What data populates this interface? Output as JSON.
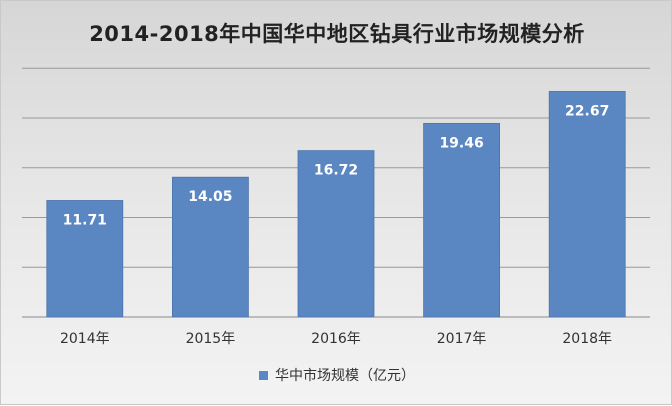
{
  "chart_data": {
    "type": "bar",
    "title": "2014-2018年中国华中地区钻具行业市场规模分析",
    "categories": [
      "2014年",
      "2015年",
      "2016年",
      "2017年",
      "2018年"
    ],
    "series": [
      {
        "name": "华中市场规模（亿元）",
        "values": [
          11.71,
          14.05,
          16.72,
          19.46,
          22.67
        ],
        "color": "#5a86c1"
      }
    ],
    "ylim": [
      0,
      25
    ],
    "grid": true,
    "legend_position": "bottom",
    "data_labels": [
      "11.71",
      "14.05",
      "16.72",
      "19.46",
      "22.67"
    ]
  }
}
